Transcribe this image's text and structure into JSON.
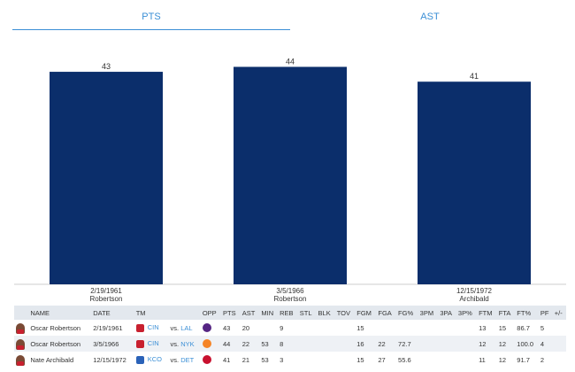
{
  "tabs": [
    {
      "label": "PTS",
      "active": true
    },
    {
      "label": "AST",
      "active": false
    }
  ],
  "colors": {
    "accent": "#3b8fd6",
    "bar": "#0b2e6b",
    "header_bg": "#e3e8ee"
  },
  "chart_data": {
    "type": "bar",
    "categories": [
      {
        "date": "2/19/1961",
        "player": "Robertson"
      },
      {
        "date": "3/5/1966",
        "player": "Robertson"
      },
      {
        "date": "12/15/1972",
        "player": "Archibald"
      }
    ],
    "values": [
      43,
      44,
      41
    ],
    "ylim": [
      0,
      50
    ],
    "grid": false,
    "legend": "none"
  },
  "table": {
    "columns": [
      "",
      "NAME",
      "DATE",
      "TM",
      "",
      "OPP",
      "PTS",
      "AST",
      "MIN",
      "REB",
      "STL",
      "BLK",
      "TOV",
      "FGM",
      "FGA",
      "FG%",
      "3PM",
      "3PA",
      "3P%",
      "FTM",
      "FTA",
      "FT%",
      "PF",
      "+/-"
    ],
    "rows": [
      {
        "name": "Oscar Robertson",
        "date": "2/19/1961",
        "tm": "CIN",
        "vs": "vs.",
        "opp": "LAL",
        "opp_icon": "lakers-logo-icon",
        "pts": "43",
        "ast": "20",
        "min": "",
        "reb": "9",
        "stl": "",
        "blk": "",
        "tov": "",
        "fgm": "15",
        "fga": "",
        "fgp": "",
        "tpm": "",
        "tpa": "",
        "tpp": "",
        "ftm": "13",
        "fta": "15",
        "ftp": "86.7",
        "pf": "5",
        "pm": ""
      },
      {
        "name": "Oscar Robertson",
        "date": "3/5/1966",
        "tm": "CIN",
        "vs": "vs.",
        "opp": "NYK",
        "opp_icon": "knicks-logo-icon",
        "pts": "44",
        "ast": "22",
        "min": "53",
        "reb": "8",
        "stl": "",
        "blk": "",
        "tov": "",
        "fgm": "16",
        "fga": "22",
        "fgp": "72.7",
        "tpm": "",
        "tpa": "",
        "tpp": "",
        "ftm": "12",
        "fta": "12",
        "ftp": "100.0",
        "pf": "4",
        "pm": ""
      },
      {
        "name": "Nate Archibald",
        "date": "12/15/1972",
        "tm": "KCO",
        "vs": "vs.",
        "opp": "DET",
        "opp_icon": "pistons-logo-icon",
        "pts": "41",
        "ast": "21",
        "min": "53",
        "reb": "3",
        "stl": "",
        "blk": "",
        "tov": "",
        "fgm": "15",
        "fga": "27",
        "fgp": "55.6",
        "tpm": "",
        "tpa": "",
        "tpp": "",
        "ftm": "11",
        "fta": "12",
        "ftp": "91.7",
        "pf": "2",
        "pm": ""
      }
    ]
  }
}
